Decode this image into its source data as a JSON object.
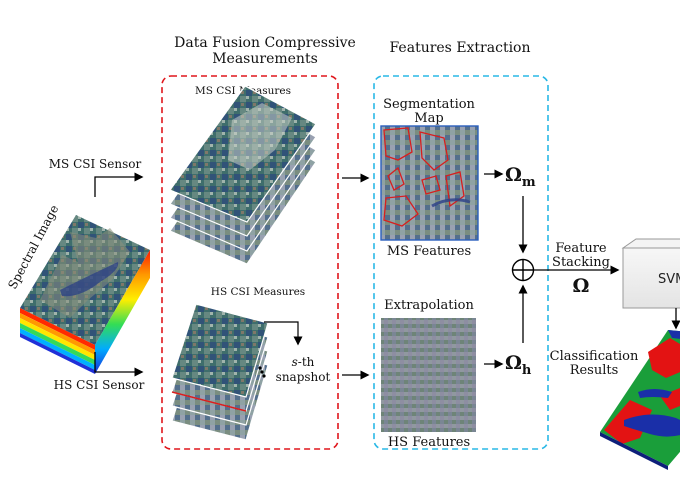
{
  "headings": {
    "fusion_line1": "Data Fusion Compressive",
    "fusion_line2": "Measurements",
    "features": "Features Extraction"
  },
  "input": {
    "label": "Spectral Image"
  },
  "sensors": {
    "ms": "MS CSI Sensor",
    "hs": "HS CSI Sensor"
  },
  "measures": {
    "ms": "MS CSI Measures",
    "hs": "HS CSI Measures"
  },
  "snapshot": {
    "line1_italic": "s",
    "line1_rest": "-th",
    "line2": "snapshot"
  },
  "feature_panels": {
    "segmentation_line1": "Segmentation",
    "segmentation_line2": "Map",
    "ms_features": "MS Features",
    "extrapolation": "Extrapolation",
    "hs_features": "HS Features"
  },
  "operators": {
    "omega_m_base": "Ω",
    "omega_m_sub": "m",
    "omega_h_base": "Ω",
    "omega_h_sub": "h",
    "plus": "⊕",
    "omega": "Ω"
  },
  "stacking": {
    "line1": "Feature",
    "line2": "Stacking"
  },
  "classifier": {
    "label": "SVM"
  },
  "results": {
    "line1": "Classification",
    "line2": "Results"
  },
  "colors": {
    "fusion_border": "#e0161c",
    "features_border": "#29b8e6",
    "segmentation_outline": "#d81e1e",
    "map_red": "#e31313",
    "map_green": "#1a9e3a",
    "map_blue": "#1a2fa8",
    "ms_panel_frame": "#2a5fbd"
  }
}
